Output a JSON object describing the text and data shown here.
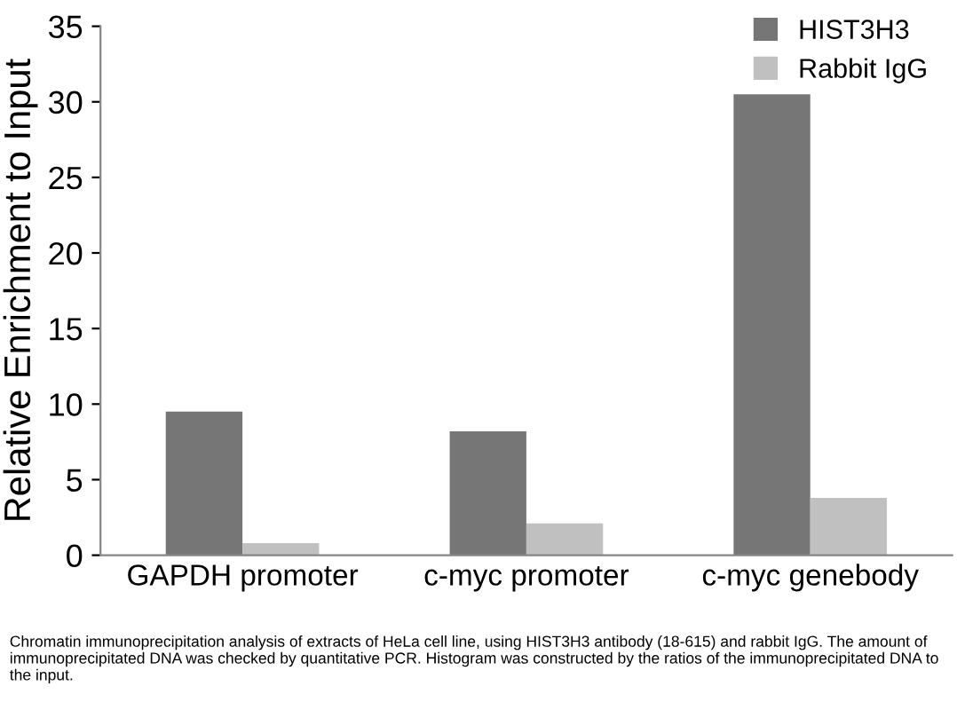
{
  "chart_data": {
    "type": "bar",
    "ylabel": "Relative Enrichment to Input",
    "categories": [
      "GAPDH promoter",
      "c-myc promoter",
      "c-myc genebody"
    ],
    "series": [
      {
        "name": "HIST3H3",
        "color": "#767676",
        "values": [
          9.5,
          8.2,
          30.5
        ]
      },
      {
        "name": "Rabbit IgG",
        "color": "#c0c0c0",
        "values": [
          0.8,
          2.1,
          3.8
        ]
      }
    ],
    "ylim": [
      0,
      35
    ],
    "yticks": [
      0,
      5,
      10,
      15,
      20,
      25,
      30,
      35
    ],
    "grid": false,
    "legend": "top right",
    "annotations": [
      "Chromatin immunoprecipitation analysis of extracts of HeLa cell line, using HIST3H3 antibody (18-615) and rabbit IgG. The amount of immunoprecipitated DNA was checked by quantitative PCR. Histogram was constructed by the ratios of the immunoprecipitated DNA to the input."
    ]
  }
}
